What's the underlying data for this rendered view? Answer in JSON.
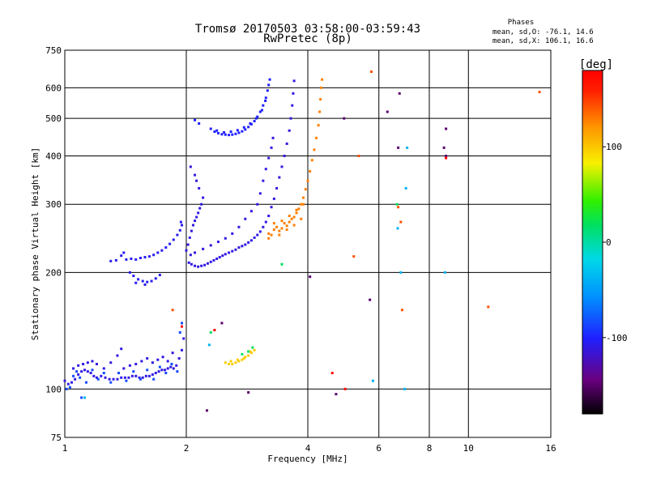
{
  "chart_data": {
    "type": "scatter",
    "title": "Tromsø 20170503 03:58:00-03:59:43",
    "subtitle": "RwPretec (8p)",
    "xlabel": "Frequency [MHz]",
    "ylabel": "Stationary phase Virtual Height [km]",
    "x_scale": "log",
    "y_scale": "log",
    "xlim": [
      1,
      16
    ],
    "ylim": [
      75,
      750
    ],
    "x_ticks": [
      1,
      2,
      4,
      6,
      8,
      10,
      16
    ],
    "x_tick_labels": [
      "1",
      "2",
      "4",
      "6",
      "8",
      "10",
      "16"
    ],
    "y_ticks": [
      75,
      100,
      200,
      300,
      400,
      500,
      600,
      750
    ],
    "y_tick_labels": [
      "75",
      "100",
      "200",
      "300",
      "400",
      "500",
      "600",
      "750"
    ],
    "grid": true,
    "stats": {
      "heading": "Phases",
      "line_o": "mean, sd,O: -76.1, 14.6",
      "line_x": "mean, sd,X: 106.1, 16.6"
    },
    "colorbar": {
      "label": "[deg]",
      "range": [
        -180,
        180
      ],
      "ticks": [
        100,
        0,
        -100
      ],
      "tick_labels": [
        "100",
        "0",
        "-100"
      ]
    },
    "series": [
      {
        "color_value": -110,
        "points": [
          [
            1.0,
            105
          ],
          [
            1.02,
            103
          ],
          [
            1.04,
            104
          ],
          [
            1.06,
            106
          ],
          [
            1.08,
            109
          ],
          [
            1.1,
            111
          ],
          [
            1.12,
            112
          ],
          [
            1.14,
            111
          ],
          [
            1.16,
            110
          ],
          [
            1.18,
            108
          ],
          [
            1.2,
            107
          ],
          [
            1.23,
            108
          ],
          [
            1.26,
            107
          ],
          [
            1.29,
            106
          ],
          [
            1.32,
            106
          ],
          [
            1.35,
            106
          ],
          [
            1.38,
            107
          ],
          [
            1.41,
            107
          ],
          [
            1.44,
            107
          ],
          [
            1.47,
            108
          ],
          [
            1.5,
            108
          ],
          [
            1.53,
            107
          ],
          [
            1.56,
            107
          ],
          [
            1.59,
            108
          ],
          [
            1.62,
            108
          ],
          [
            1.65,
            109
          ],
          [
            1.68,
            110
          ],
          [
            1.71,
            111
          ],
          [
            1.74,
            112
          ],
          [
            1.77,
            112
          ],
          [
            1.8,
            113
          ],
          [
            1.83,
            114
          ],
          [
            1.86,
            113
          ],
          [
            1.89,
            115
          ],
          [
            1.92,
            120
          ],
          [
            1.95,
            126
          ],
          [
            1.97,
            135
          ],
          [
            1.4,
            113
          ],
          [
            1.45,
            115
          ],
          [
            1.5,
            116
          ],
          [
            1.55,
            118
          ],
          [
            1.6,
            120
          ],
          [
            1.65,
            117
          ],
          [
            1.7,
            119
          ],
          [
            1.75,
            121
          ],
          [
            1.8,
            118
          ],
          [
            1.85,
            124
          ],
          [
            1.05,
            113
          ],
          [
            1.08,
            115
          ],
          [
            1.11,
            116
          ],
          [
            1.14,
            117
          ],
          [
            1.17,
            118
          ],
          [
            1.2,
            116
          ],
          [
            1.25,
            113
          ],
          [
            1.3,
            117
          ],
          [
            1.35,
            122
          ],
          [
            1.38,
            127
          ]
        ]
      },
      {
        "color_value": -85,
        "points": [
          [
            1.01,
            100
          ],
          [
            1.03,
            101
          ],
          [
            1.05,
            108
          ],
          [
            1.07,
            111
          ],
          [
            1.09,
            107
          ],
          [
            1.13,
            104
          ],
          [
            1.17,
            112
          ],
          [
            1.21,
            106
          ],
          [
            1.25,
            110
          ],
          [
            1.3,
            104
          ],
          [
            1.36,
            110
          ],
          [
            1.42,
            105
          ],
          [
            1.48,
            111
          ],
          [
            1.54,
            106
          ],
          [
            1.6,
            112
          ],
          [
            1.66,
            106
          ],
          [
            1.72,
            114
          ],
          [
            1.78,
            110
          ],
          [
            1.84,
            116
          ],
          [
            1.9,
            111
          ],
          [
            1.1,
            95
          ],
          [
            1.93,
            140
          ],
          [
            1.95,
            148
          ]
        ]
      },
      {
        "color_value": -105,
        "points": [
          [
            1.42,
            216
          ],
          [
            1.46,
            217
          ],
          [
            1.5,
            216
          ],
          [
            1.54,
            218
          ],
          [
            1.58,
            219
          ],
          [
            1.62,
            220
          ],
          [
            1.66,
            222
          ],
          [
            1.7,
            225
          ],
          [
            1.74,
            228
          ],
          [
            1.78,
            232
          ],
          [
            1.82,
            237
          ],
          [
            1.86,
            243
          ],
          [
            1.9,
            250
          ],
          [
            1.93,
            257
          ],
          [
            1.95,
            265
          ],
          [
            1.4,
            225
          ],
          [
            1.38,
            221
          ],
          [
            1.45,
            200
          ],
          [
            1.48,
            196
          ],
          [
            1.52,
            192
          ],
          [
            1.56,
            190
          ],
          [
            1.6,
            189
          ],
          [
            1.64,
            190
          ],
          [
            1.68,
            193
          ],
          [
            1.72,
            197
          ],
          [
            1.5,
            188
          ],
          [
            1.58,
            186
          ],
          [
            1.34,
            215
          ],
          [
            1.3,
            214
          ],
          [
            1.94,
            270
          ]
        ]
      },
      {
        "color_value": -110,
        "points": [
          [
            2.0,
            228
          ],
          [
            2.02,
            236
          ],
          [
            2.04,
            246
          ],
          [
            2.06,
            256
          ],
          [
            2.08,
            265
          ],
          [
            2.1,
            272
          ],
          [
            2.12,
            278
          ],
          [
            2.14,
            285
          ],
          [
            2.16,
            293
          ],
          [
            2.18,
            300
          ],
          [
            2.2,
            312
          ],
          [
            2.15,
            330
          ],
          [
            2.12,
            345
          ],
          [
            2.1,
            357
          ],
          [
            2.05,
            375
          ],
          [
            2.03,
            212
          ],
          [
            2.06,
            210
          ],
          [
            2.1,
            208
          ],
          [
            2.14,
            207
          ],
          [
            2.18,
            208
          ],
          [
            2.22,
            209
          ],
          [
            2.26,
            211
          ],
          [
            2.3,
            213
          ],
          [
            2.34,
            215
          ],
          [
            2.38,
            217
          ],
          [
            2.42,
            219
          ],
          [
            2.46,
            221
          ],
          [
            2.5,
            223
          ],
          [
            2.55,
            225
          ],
          [
            2.6,
            227
          ],
          [
            2.65,
            229
          ],
          [
            2.7,
            232
          ],
          [
            2.75,
            234
          ],
          [
            2.8,
            236
          ],
          [
            2.85,
            239
          ],
          [
            2.9,
            242
          ],
          [
            2.95,
            246
          ],
          [
            3.0,
            250
          ],
          [
            3.05,
            255
          ],
          [
            3.1,
            262
          ],
          [
            3.15,
            270
          ],
          [
            3.2,
            280
          ],
          [
            3.25,
            295
          ],
          [
            3.3,
            310
          ],
          [
            3.35,
            330
          ],
          [
            3.4,
            352
          ],
          [
            3.45,
            375
          ],
          [
            3.5,
            400
          ],
          [
            3.55,
            430
          ],
          [
            3.6,
            465
          ],
          [
            3.63,
            500
          ],
          [
            3.66,
            540
          ],
          [
            3.68,
            580
          ],
          [
            3.7,
            625
          ],
          [
            2.05,
            222
          ],
          [
            2.1,
            225
          ],
          [
            2.2,
            230
          ],
          [
            2.3,
            235
          ],
          [
            2.4,
            240
          ],
          [
            2.5,
            245
          ],
          [
            2.6,
            252
          ],
          [
            2.7,
            262
          ],
          [
            2.8,
            275
          ],
          [
            2.9,
            288
          ],
          [
            3.0,
            300
          ],
          [
            3.05,
            320
          ],
          [
            3.1,
            345
          ],
          [
            3.15,
            370
          ],
          [
            3.2,
            395
          ],
          [
            3.25,
            420
          ],
          [
            3.28,
            445
          ]
        ]
      },
      {
        "color_value": -100,
        "points": [
          [
            2.3,
            470
          ],
          [
            2.35,
            462
          ],
          [
            2.4,
            458
          ],
          [
            2.45,
            455
          ],
          [
            2.5,
            454
          ],
          [
            2.55,
            453
          ],
          [
            2.6,
            454
          ],
          [
            2.65,
            456
          ],
          [
            2.7,
            459
          ],
          [
            2.75,
            463
          ],
          [
            2.8,
            468
          ],
          [
            2.85,
            475
          ],
          [
            2.9,
            483
          ],
          [
            2.95,
            492
          ],
          [
            3.0,
            505
          ],
          [
            3.05,
            520
          ],
          [
            3.1,
            540
          ],
          [
            3.15,
            565
          ],
          [
            3.18,
            590
          ],
          [
            3.2,
            610
          ],
          [
            3.22,
            630
          ],
          [
            2.38,
            465
          ],
          [
            2.48,
            460
          ],
          [
            2.58,
            462
          ],
          [
            2.68,
            466
          ],
          [
            2.78,
            474
          ],
          [
            2.88,
            485
          ],
          [
            2.98,
            500
          ],
          [
            3.08,
            525
          ],
          [
            3.14,
            555
          ],
          [
            2.1,
            495
          ],
          [
            2.15,
            485
          ]
        ]
      },
      {
        "color_value": 130,
        "points": [
          [
            3.2,
            252
          ],
          [
            3.25,
            250
          ],
          [
            3.3,
            258
          ],
          [
            3.35,
            262
          ],
          [
            3.4,
            256
          ],
          [
            3.45,
            260
          ],
          [
            3.5,
            268
          ],
          [
            3.55,
            264
          ],
          [
            3.6,
            270
          ],
          [
            3.65,
            275
          ],
          [
            3.7,
            278
          ],
          [
            3.75,
            285
          ],
          [
            3.8,
            292
          ],
          [
            3.85,
            300
          ],
          [
            3.9,
            312
          ],
          [
            3.95,
            328
          ],
          [
            4.0,
            345
          ],
          [
            4.05,
            365
          ],
          [
            4.1,
            390
          ],
          [
            4.15,
            415
          ],
          [
            4.2,
            445
          ],
          [
            4.25,
            480
          ],
          [
            4.28,
            520
          ],
          [
            4.3,
            560
          ],
          [
            4.32,
            600
          ],
          [
            4.34,
            630
          ],
          [
            3.3,
            268
          ],
          [
            3.45,
            272
          ],
          [
            3.6,
            280
          ],
          [
            3.75,
            290
          ],
          [
            3.9,
            300
          ],
          [
            3.4,
            250
          ],
          [
            3.55,
            258
          ],
          [
            3.7,
            265
          ],
          [
            3.85,
            275
          ],
          [
            3.2,
            245
          ]
        ]
      },
      {
        "color_value": 100,
        "points": [
          [
            2.5,
            117
          ],
          [
            2.55,
            116
          ],
          [
            2.6,
            116
          ],
          [
            2.65,
            117
          ],
          [
            2.7,
            118
          ],
          [
            2.75,
            119
          ],
          [
            2.8,
            121
          ],
          [
            2.85,
            122
          ],
          [
            2.9,
            124
          ],
          [
            2.95,
            126
          ],
          [
            2.58,
            118
          ],
          [
            2.68,
            119
          ],
          [
            2.78,
            120
          ],
          [
            2.88,
            125
          ]
        ]
      },
      {
        "color_value": 10,
        "points": [
          [
            2.75,
            123
          ],
          [
            2.85,
            125
          ],
          [
            2.92,
            128
          ],
          [
            3.45,
            210
          ],
          [
            6.65,
            300
          ],
          [
            2.3,
            140
          ]
        ]
      },
      {
        "color_value": -40,
        "points": [
          [
            6.68,
            260
          ],
          [
            6.8,
            200
          ],
          [
            7.0,
            330
          ],
          [
            7.05,
            420
          ],
          [
            5.8,
            105
          ],
          [
            6.95,
            100
          ],
          [
            8.75,
            200
          ],
          [
            1.12,
            95
          ],
          [
            2.28,
            130
          ]
        ]
      },
      {
        "color_value": 145,
        "points": [
          [
            5.75,
            660
          ],
          [
            5.35,
            400
          ],
          [
            6.8,
            270
          ],
          [
            6.85,
            160
          ],
          [
            6.7,
            295
          ],
          [
            5.2,
            220
          ],
          [
            11.2,
            163
          ],
          [
            15.0,
            585
          ],
          [
            1.85,
            160
          ]
        ]
      },
      {
        "color_value": -150,
        "points": [
          [
            4.05,
            195
          ],
          [
            4.92,
            500
          ],
          [
            6.3,
            520
          ],
          [
            6.75,
            580
          ],
          [
            5.7,
            170
          ],
          [
            8.8,
            470
          ],
          [
            8.7,
            420
          ],
          [
            8.8,
            400
          ],
          [
            4.7,
            97
          ],
          [
            2.85,
            98
          ],
          [
            2.25,
            88
          ],
          [
            2.45,
            148
          ],
          [
            6.7,
            420
          ]
        ]
      },
      {
        "color_value": 175,
        "points": [
          [
            4.6,
            110
          ],
          [
            4.95,
            100
          ],
          [
            1.95,
            145
          ],
          [
            2.35,
            142
          ],
          [
            8.8,
            395
          ]
        ]
      }
    ]
  }
}
